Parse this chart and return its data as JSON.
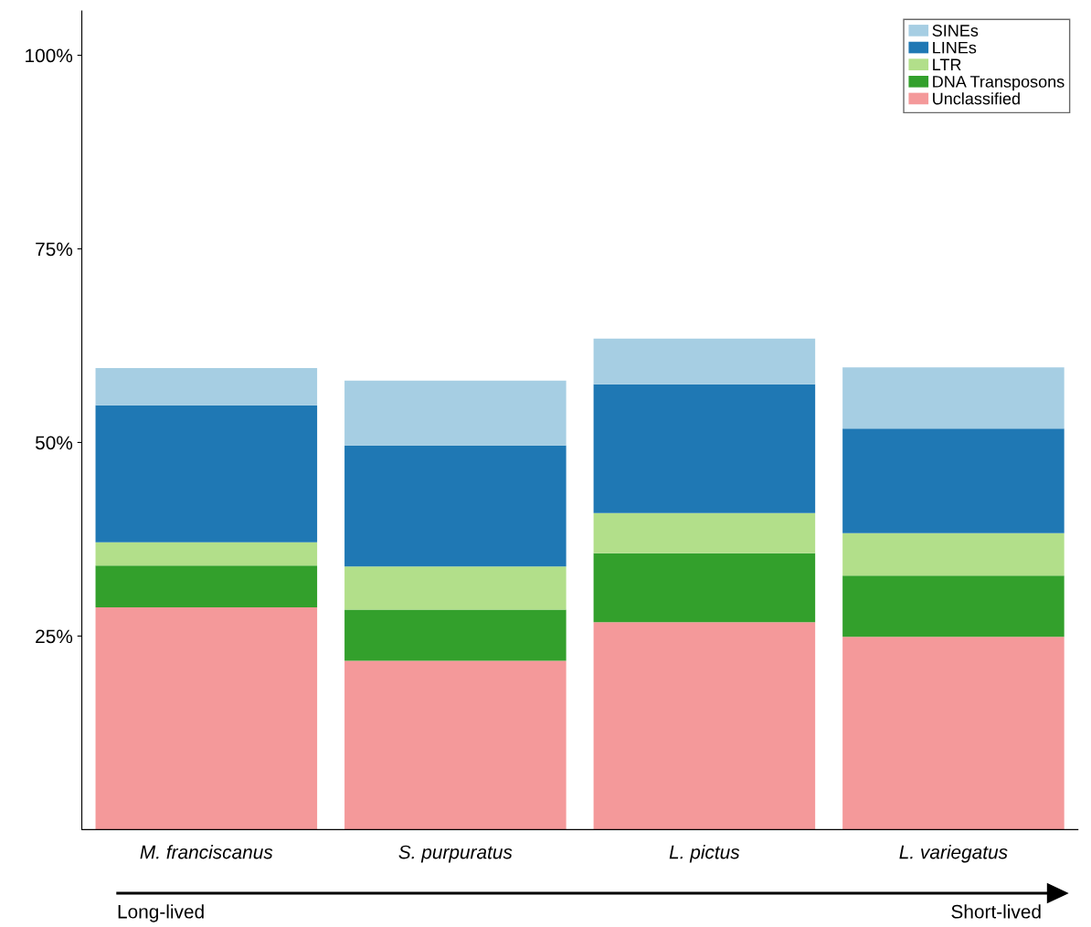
{
  "chart_data": {
    "type": "bar",
    "stacked": true,
    "categories": [
      "M. franciscanus",
      "S. purpuratus",
      "L. pictus",
      "L. variegatus"
    ],
    "series": [
      {
        "name": "Unclassified",
        "color": "#f4999a",
        "values": [
          28.7,
          21.8,
          26.8,
          24.9
        ]
      },
      {
        "name": "DNA Transposons",
        "color": "#33a02c",
        "values": [
          5.4,
          6.6,
          8.9,
          7.9
        ]
      },
      {
        "name": "LTR",
        "color": "#b2df8a",
        "values": [
          3.0,
          5.6,
          5.2,
          5.5
        ]
      },
      {
        "name": "LINEs",
        "color": "#1f78b4",
        "values": [
          17.7,
          15.6,
          16.6,
          13.5
        ]
      },
      {
        "name": "SINEs",
        "color": "#a6cee3",
        "values": [
          4.8,
          8.4,
          5.9,
          7.9
        ]
      }
    ],
    "ylim": [
      0,
      105.7
    ],
    "yticks": [
      {
        "value": 25,
        "label": "25%"
      },
      {
        "value": 50,
        "label": "50%"
      },
      {
        "value": 75,
        "label": "75%"
      },
      {
        "value": 100,
        "label": "100%"
      }
    ],
    "grid": false,
    "legend": "top right",
    "annotations": [
      "Long-lived",
      "Short-lived"
    ]
  }
}
